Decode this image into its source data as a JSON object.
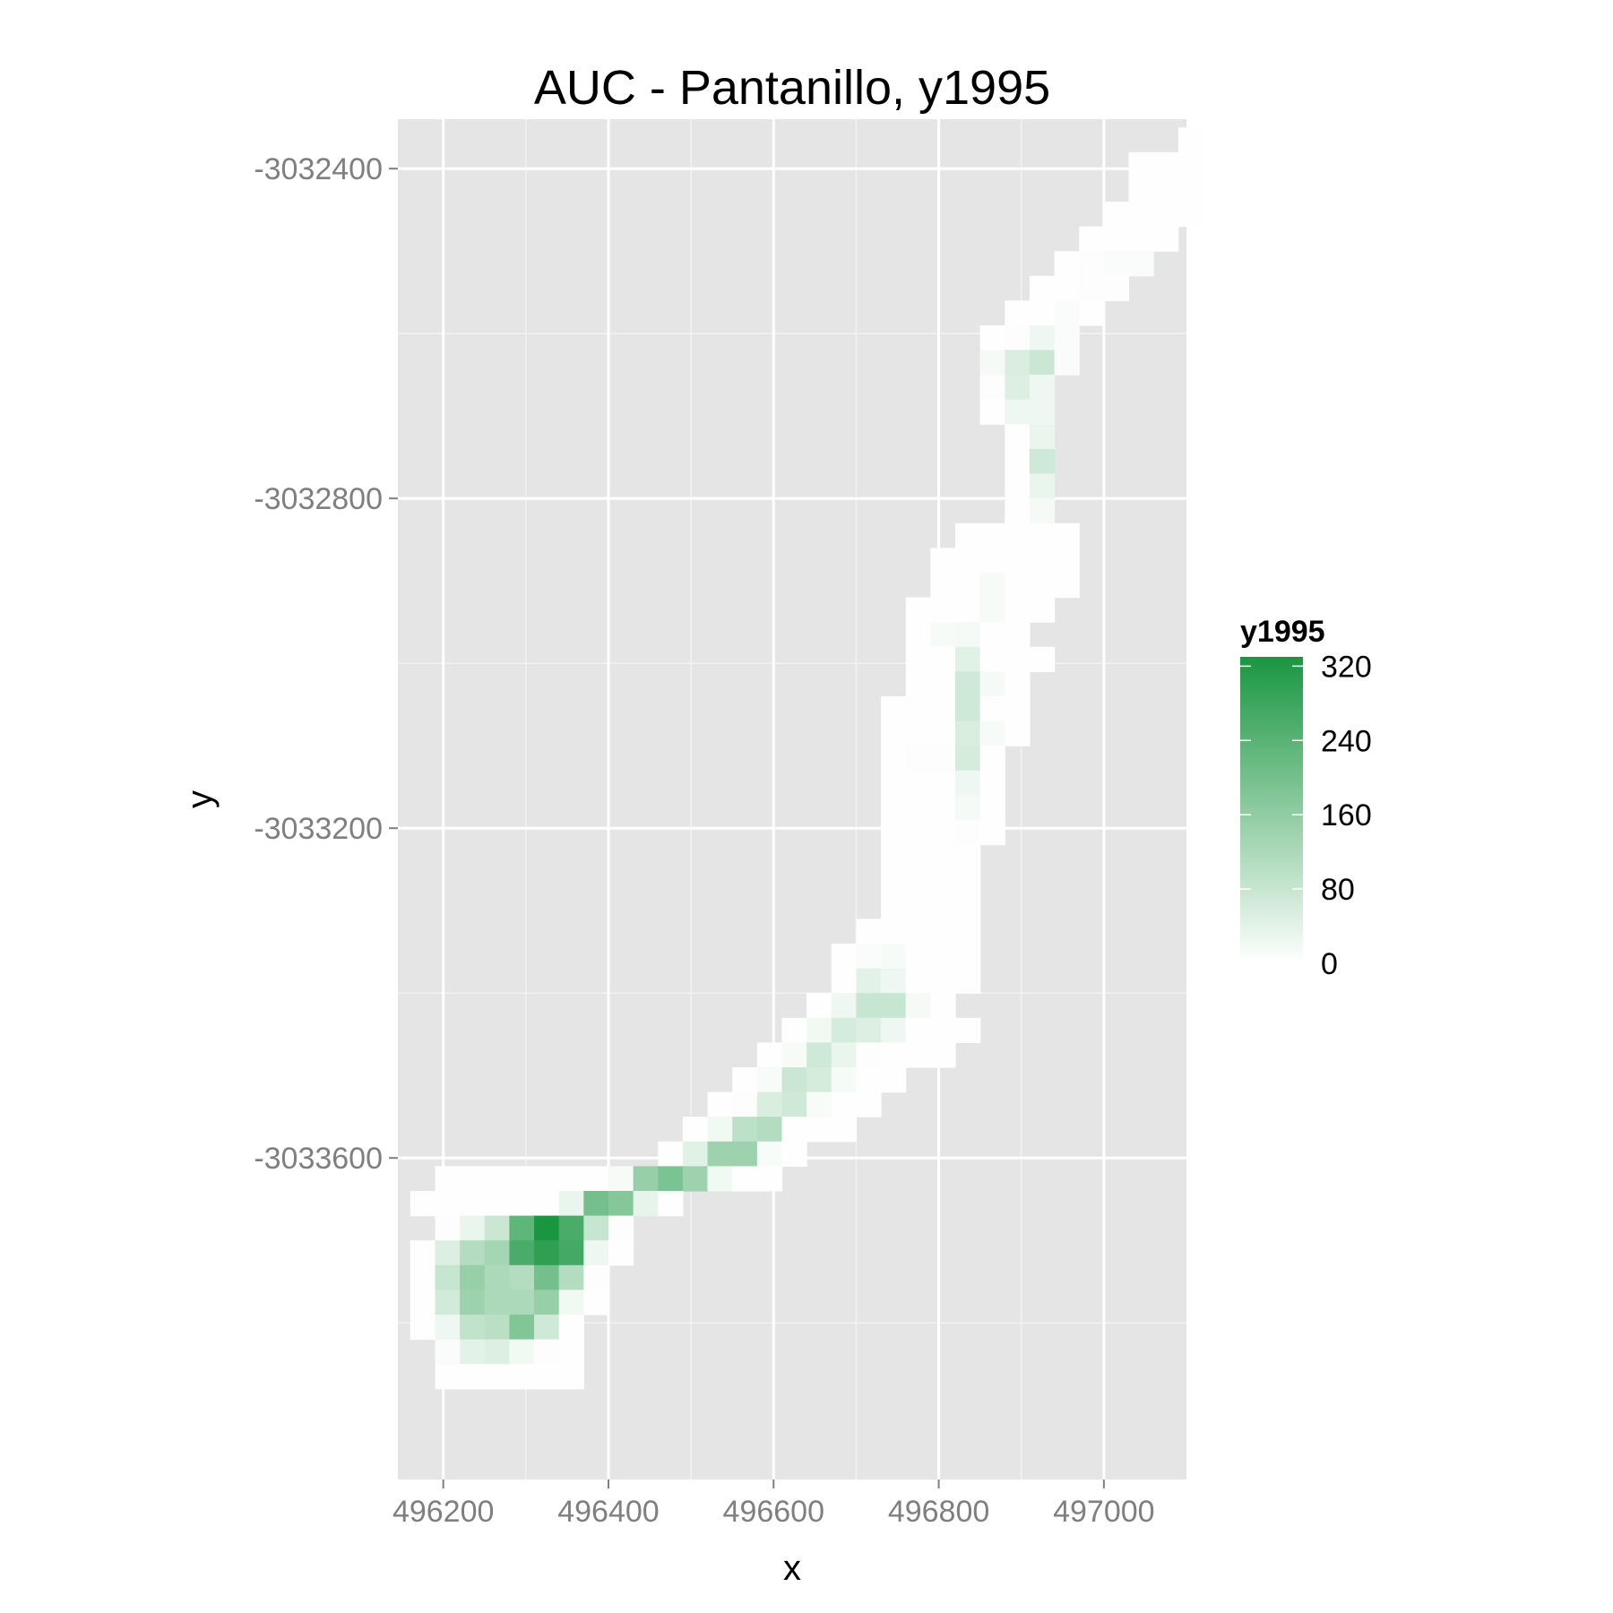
{
  "chart_data": {
    "type": "heatmap",
    "title": "AUC - Pantanillo, y1995",
    "xlabel": "x",
    "ylabel": "y",
    "xlim": [
      496145,
      497100
    ],
    "ylim": [
      -3033990,
      -3032340
    ],
    "x_ticks": [
      {
        "value": 496200,
        "label": "496200"
      },
      {
        "value": 496400,
        "label": "496400"
      },
      {
        "value": 496600,
        "label": "496600"
      },
      {
        "value": 496800,
        "label": "496800"
      },
      {
        "value": 497000,
        "label": "497000"
      }
    ],
    "y_ticks": [
      {
        "value": -3032400,
        "label": "-3032400"
      },
      {
        "value": -3032800,
        "label": "-3032800"
      },
      {
        "value": -3033200,
        "label": "-3033200"
      },
      {
        "value": -3033600,
        "label": "-3033600"
      }
    ],
    "grid": true,
    "cell_size": 30,
    "legend": {
      "title": "y1995",
      "position": "right",
      "min": 0,
      "max": 330,
      "low_color": "#ffffff",
      "high_color": "#1a9641",
      "ticks": [
        {
          "value": 0,
          "label": "0"
        },
        {
          "value": 80,
          "label": "80"
        },
        {
          "value": 160,
          "label": "160"
        },
        {
          "value": 240,
          "label": "240"
        },
        {
          "value": 320,
          "label": "320"
        }
      ]
    },
    "origin_x": 496160,
    "origin_y": -3032350,
    "rows": [
      {
        "start": 31,
        "values": [
          2
        ]
      },
      {
        "start": 29,
        "values": [
          2,
          2,
          2
        ]
      },
      {
        "start": 29,
        "values": [
          2,
          2,
          2
        ]
      },
      {
        "start": 28,
        "values": [
          2,
          2,
          2,
          2
        ]
      },
      {
        "start": 27,
        "values": [
          2,
          2,
          2,
          2
        ]
      },
      {
        "start": 26,
        "values": [
          2,
          5,
          8,
          8
        ]
      },
      {
        "start": 25,
        "values": [
          2,
          2,
          5,
          5
        ]
      },
      {
        "start": 24,
        "values": [
          2,
          2,
          8,
          2
        ]
      },
      {
        "start": 23,
        "values": [
          2,
          5,
          25,
          8
        ]
      },
      {
        "start": 23,
        "values": [
          15,
          55,
          75,
          8
        ]
      },
      {
        "start": 23,
        "values": [
          5,
          50,
          25
        ]
      },
      {
        "start": 23,
        "values": [
          2,
          25,
          25
        ]
      },
      {
        "start": 24,
        "values": [
          2,
          30
        ]
      },
      {
        "start": 24,
        "values": [
          2,
          70
        ]
      },
      {
        "start": 24,
        "values": [
          2,
          30
        ]
      },
      {
        "start": 24,
        "values": [
          2,
          15
        ]
      },
      {
        "start": 22,
        "values": [
          2,
          2,
          2,
          2,
          2
        ]
      },
      {
        "start": 21,
        "values": [
          2,
          2,
          2,
          2,
          2,
          2
        ]
      },
      {
        "start": 21,
        "values": [
          2,
          2,
          12,
          2,
          2,
          2
        ]
      },
      {
        "start": 20,
        "values": [
          2,
          2,
          2,
          12,
          2,
          2
        ]
      },
      {
        "start": 20,
        "values": [
          2,
          12,
          15,
          2,
          2
        ]
      },
      {
        "start": 20,
        "values": [
          2,
          2,
          45,
          2,
          2,
          2
        ]
      },
      {
        "start": 20,
        "values": [
          2,
          2,
          70,
          15,
          2
        ]
      },
      {
        "start": 19,
        "values": [
          2,
          2,
          2,
          70,
          2,
          2
        ]
      },
      {
        "start": 19,
        "values": [
          2,
          2,
          2,
          55,
          12,
          2
        ]
      },
      {
        "start": 19,
        "values": [
          2,
          5,
          5,
          60,
          2
        ]
      },
      {
        "start": 19,
        "values": [
          2,
          2,
          2,
          25,
          2
        ]
      },
      {
        "start": 19,
        "values": [
          2,
          2,
          2,
          15,
          2
        ]
      },
      {
        "start": 19,
        "values": [
          2,
          2,
          2,
          5,
          2
        ]
      },
      {
        "start": 19,
        "values": [
          2,
          2,
          2,
          2
        ]
      },
      {
        "start": 19,
        "values": [
          2,
          2,
          2,
          2
        ]
      },
      {
        "start": 19,
        "values": [
          2,
          2,
          2,
          2
        ]
      },
      {
        "start": 18,
        "values": [
          2,
          2,
          2,
          2,
          2
        ]
      },
      {
        "start": 17,
        "values": [
          2,
          8,
          12,
          2,
          2,
          2
        ]
      },
      {
        "start": 17,
        "values": [
          2,
          40,
          25,
          2,
          2,
          2
        ]
      },
      {
        "start": 16,
        "values": [
          2,
          25,
          80,
          80,
          15,
          2
        ]
      },
      {
        "start": 15,
        "values": [
          2,
          20,
          60,
          50,
          25,
          2,
          2,
          2
        ]
      },
      {
        "start": 14,
        "values": [
          2,
          12,
          70,
          30,
          5,
          2,
          2,
          2
        ]
      },
      {
        "start": 13,
        "values": [
          2,
          10,
          75,
          60,
          12,
          2,
          2
        ]
      },
      {
        "start": 12,
        "values": [
          2,
          5,
          55,
          70,
          10,
          2,
          2
        ]
      },
      {
        "start": 11,
        "values": [
          2,
          20,
          95,
          110,
          2,
          2,
          2
        ]
      },
      {
        "start": 10,
        "values": [
          2,
          45,
          140,
          140,
          10,
          2
        ]
      },
      {
        "start": 1,
        "values": [
          2,
          2,
          2,
          2,
          2,
          2,
          2,
          12,
          150,
          190,
          140,
          20,
          2,
          2
        ]
      },
      {
        "start": 0,
        "values": [
          2,
          2,
          2,
          2,
          2,
          2,
          30,
          200,
          175,
          35,
          2
        ]
      },
      {
        "start": 1,
        "values": [
          5,
          30,
          75,
          230,
          330,
          260,
          80,
          5
        ]
      },
      {
        "start": 0,
        "values": [
          2,
          50,
          110,
          130,
          260,
          300,
          270,
          25,
          2
        ]
      },
      {
        "start": 0,
        "values": [
          2,
          80,
          150,
          120,
          110,
          200,
          110,
          5
        ]
      },
      {
        "start": 0,
        "values": [
          2,
          65,
          140,
          120,
          120,
          150,
          20,
          2
        ]
      },
      {
        "start": 0,
        "values": [
          2,
          25,
          90,
          100,
          180,
          70,
          2
        ]
      },
      {
        "start": 1,
        "values": [
          8,
          40,
          50,
          20,
          5,
          2
        ]
      },
      {
        "start": 1,
        "values": [
          2,
          2,
          2,
          2,
          2,
          2
        ]
      }
    ]
  }
}
